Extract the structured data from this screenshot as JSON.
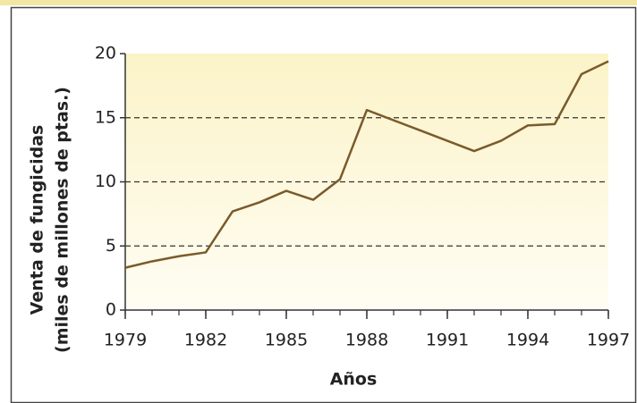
{
  "chart_data": {
    "type": "line",
    "xlabel": "Años",
    "ylabel": [
      "Venta de fungicidas",
      "(miles de millones de ptas.)"
    ],
    "x": [
      1979,
      1980,
      1981,
      1982,
      1983,
      1984,
      1985,
      1986,
      1987,
      1988,
      1989,
      1990,
      1991,
      1992,
      1993,
      1994,
      1995,
      1996,
      1997
    ],
    "series": [
      {
        "color": "#7a5a2c",
        "values": [
          3.3,
          3.8,
          4.2,
          4.5,
          7.7,
          8.4,
          9.3,
          8.6,
          10.2,
          15.6,
          14.8,
          14.0,
          13.2,
          12.4,
          13.2,
          14.4,
          14.5,
          18.4,
          19.4
        ]
      }
    ],
    "xlim": [
      1979,
      1997
    ],
    "xticks": [
      1979,
      1982,
      1985,
      1988,
      1991,
      1994,
      1997
    ],
    "ylim": [
      0,
      20
    ],
    "yticks": [
      0,
      5,
      10,
      15,
      20
    ],
    "grid": true
  }
}
